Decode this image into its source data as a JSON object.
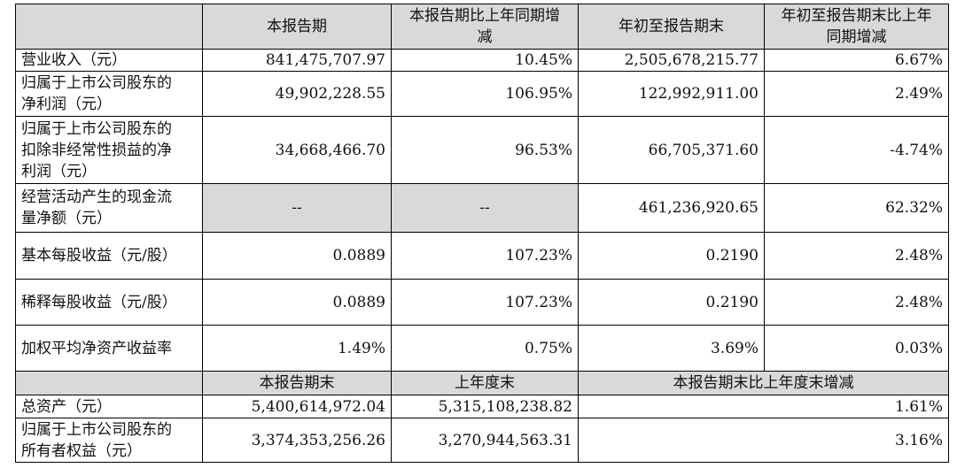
{
  "header": [
    "本报告期",
    "本报告期比上年同期增减",
    "年初至报告期末",
    "年初至报告期末比上年同期增减"
  ],
  "rows": [
    [
      "营业收入（元）",
      "841,475,707.97",
      "10.45%",
      "2,505,678,215.77",
      "6.67%"
    ],
    [
      "归属于上市公司股东的净利润（元）",
      "49,902,228.55",
      "106.95%",
      "122,992,911.00",
      "2.49%"
    ],
    [
      "归属于上市公司股东的扣除非经常性损益的净利润（元）",
      "34,668,466.70",
      "96.53%",
      "66,705,371.60",
      "-4.74%"
    ],
    [
      "经营活动产生的现金流量净额（元）",
      "--",
      "--",
      "461,236,920.65",
      "62.32%"
    ],
    [
      "基本每股收益（元/股）",
      "0.0889",
      "107.23%",
      "0.2190",
      "2.48%"
    ],
    [
      "稀释每股收益（元/股）",
      "0.0889",
      "107.23%",
      "0.2190",
      "2.48%"
    ],
    [
      "加权平均净资产收益率",
      "1.49%",
      "0.75%",
      "3.69%",
      "0.03%"
    ]
  ],
  "subheader": [
    "本报告期末",
    "上年度末",
    "本报告期末比上年度末增减"
  ],
  "asset_rows": [
    [
      "总资产（元）",
      "5,400,614,972.04",
      "5,315,108,238.82",
      "1.61%"
    ],
    [
      "归属于上市公司股东的所有者权益（元）",
      "3,374,353,256.26",
      "3,270,944,563.31",
      "3.16%"
    ]
  ]
}
